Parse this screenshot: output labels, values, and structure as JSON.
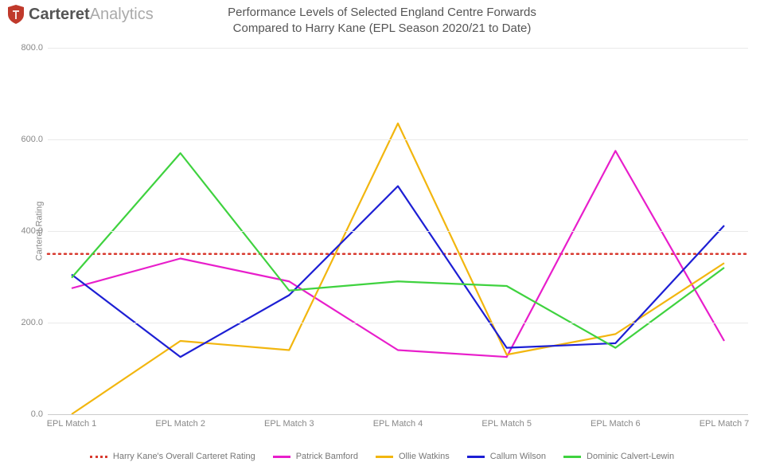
{
  "brand": {
    "bold": "Carteret",
    "light": "Analytics"
  },
  "title_line1": "Performance Levels of Selected England Centre Forwards",
  "title_line2": "Compared to Harry Kane (EPL Season 2020/21 to Date)",
  "chart": {
    "type": "line",
    "ylabel": "Carteret Rating",
    "ylim": [
      0,
      800
    ],
    "ytick_step": 200,
    "yticks": [
      0.0,
      200.0,
      400.0,
      600.0,
      800.0
    ],
    "categories": [
      "EPL Match 1",
      "EPL Match 2",
      "EPL Match 3",
      "EPL Match 4",
      "EPL Match 5",
      "EPL Match 6",
      "EPL Match 7"
    ],
    "grid_color": "#e9e9e9",
    "axis_color": "#cccccc",
    "background_color": "#ffffff",
    "line_width": 2.2,
    "label_fontsize": 11,
    "title_fontsize": 15,
    "reference": {
      "label": "Harry Kane's Overall Carteret Rating",
      "value": 350,
      "color": "#d83a2f",
      "style": "dotted",
      "width": 2.5
    },
    "series": [
      {
        "name": "Patrick Bamford",
        "legend": "Patrick Bamford",
        "color": "#e81ecb",
        "values": [
          275,
          340,
          290,
          140,
          125,
          575,
          160
        ]
      },
      {
        "name": "Ollie Watkins",
        "legend": "Ollie Watkins",
        "color": "#f2b60f",
        "values": [
          0,
          160,
          140,
          635,
          130,
          175,
          330
        ]
      },
      {
        "name": "Callum Wilson",
        "legend": "Callum Wilson",
        "color": "#1d1fd4",
        "values": [
          305,
          125,
          260,
          498,
          145,
          155,
          412
        ]
      },
      {
        "name": "Dominic Calvert-Lewin",
        "legend": "Dominic Calvert-Lewin",
        "color": "#3fd23f",
        "values": [
          298,
          570,
          270,
          290,
          280,
          145,
          320
        ]
      }
    ],
    "legend_order": [
      "reference",
      "Patrick Bamford",
      "Ollie Watkins",
      "Callum Wilson",
      "Dominic Calvert-Lewin"
    ]
  }
}
